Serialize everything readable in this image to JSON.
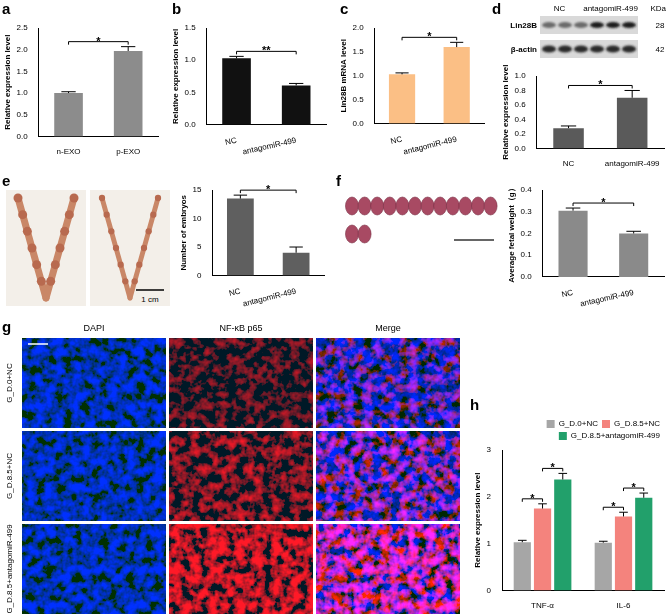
{
  "chart_data": [
    {
      "panel": "a",
      "type": "bar",
      "categories": [
        "n-EXO",
        "p-EXO"
      ],
      "values": [
        1.0,
        1.97
      ],
      "errors": [
        0.03,
        0.1
      ],
      "color": "#8c8c8c",
      "ylabel": "Relative expression level",
      "ylim": [
        0,
        2.5
      ],
      "yticks": [
        {
          "value": 0,
          "label": "0.0"
        },
        {
          "value": 0.5,
          "label": "0.5"
        },
        {
          "value": 1,
          "label": "1.0"
        },
        {
          "value": 1.5,
          "label": "1.5"
        },
        {
          "value": 2,
          "label": "2.0"
        },
        {
          "value": 2.5,
          "label": "2.5"
        }
      ],
      "grid": false,
      "significance": [
        {
          "text": "*",
          "between": [
            "n-EXO",
            "p-EXO"
          ]
        }
      ]
    },
    {
      "panel": "b",
      "type": "bar",
      "categories": [
        "NC",
        "antagomiR-499"
      ],
      "values": [
        1.03,
        0.61
      ],
      "errors": [
        0.03,
        0.03
      ],
      "color": "#111111",
      "ylabel": "Relative expression level",
      "ylim": [
        0,
        1.5
      ],
      "yticks": [
        {
          "value": 0,
          "label": "0.0"
        },
        {
          "value": 0.5,
          "label": "0.5"
        },
        {
          "value": 1,
          "label": "1.0"
        },
        {
          "value": 1.5,
          "label": "1.5"
        }
      ],
      "grid": false,
      "significance": [
        {
          "text": "**",
          "between": [
            "NC",
            "antagomiR-499"
          ]
        }
      ]
    },
    {
      "panel": "c",
      "type": "bar",
      "categories": [
        "NC",
        "antagomiR-499"
      ],
      "values": [
        1.03,
        1.6
      ],
      "errors": [
        0.03,
        0.1
      ],
      "color": "#fbbf85",
      "ylabel": "Lin28B mRNA level",
      "ylim": [
        0,
        2
      ],
      "yticks": [
        {
          "value": 0,
          "label": "0.0"
        },
        {
          "value": 0.5,
          "label": "0.5"
        },
        {
          "value": 1,
          "label": "1.0"
        },
        {
          "value": 1.5,
          "label": "1.5"
        },
        {
          "value": 2,
          "label": "2.0"
        }
      ],
      "grid": false,
      "significance": [
        {
          "text": "*",
          "between": [
            "NC",
            "antagomiR-499"
          ]
        }
      ]
    },
    {
      "type": "bar",
      "categories": [
        "NC",
        "antagomiR-499"
      ],
      "values": [
        0.28,
        0.7
      ],
      "errors": [
        0.03,
        0.1
      ],
      "color": "#5a5a5a",
      "ylabel": "Relative expression level",
      "ylim": [
        0,
        1
      ],
      "yticks": [
        {
          "value": 0,
          "label": "0.0"
        },
        {
          "value": 0.2,
          "label": "0.2"
        },
        {
          "value": 0.4,
          "label": "0.4"
        },
        {
          "value": 0.6,
          "label": "0.6"
        },
        {
          "value": 0.8,
          "label": "0.8"
        },
        {
          "value": 1,
          "label": "1.0"
        }
      ],
      "grid": false,
      "significance": [
        {
          "text": "*",
          "between": [
            "NC",
            "antagomiR-499"
          ]
        }
      ]
    },
    {
      "panel": "e",
      "type": "bar",
      "categories": [
        "NC",
        "antagomiR-499"
      ],
      "values": [
        13.5,
        4
      ],
      "errors": [
        0.6,
        1
      ],
      "color": "#5f5f5f",
      "ylabel": "Number of embryos",
      "ylim": [
        0,
        15
      ],
      "yticks": [
        0,
        5,
        10,
        15
      ],
      "grid": false,
      "significance": [
        {
          "text": "*",
          "between": [
            "NC",
            "antagomiR-499"
          ]
        }
      ]
    },
    {
      "panel": "f",
      "type": "bar",
      "categories": [
        "NC",
        "antagomiR-499"
      ],
      "values": [
        0.305,
        0.2
      ],
      "errors": [
        0.012,
        0.01
      ],
      "color": "#8a8a8a",
      "ylabel": "Average fetal weight（g）",
      "ylim": [
        0,
        0.4
      ],
      "yticks": [
        {
          "value": 0,
          "label": "0.0"
        },
        {
          "value": 0.1,
          "label": "0.1"
        },
        {
          "value": 0.2,
          "label": "0.2"
        },
        {
          "value": 0.3,
          "label": "0.3"
        },
        {
          "value": 0.4,
          "label": "0.4"
        }
      ],
      "grid": false,
      "significance": [
        {
          "text": "*",
          "between": [
            "NC",
            "antagomiR-499"
          ]
        }
      ]
    },
    {
      "panel": "h",
      "type": "bar",
      "categories": [
        "TNF-α",
        "IL-6"
      ],
      "series": [
        {
          "name": "G_D.0+NC",
          "color": "#a6a6a6",
          "values": [
            1.03,
            1.02
          ],
          "errors": [
            0.04,
            0.03
          ]
        },
        {
          "name": "G_D.8.5+NC",
          "color": "#f4837d",
          "values": [
            1.75,
            1.58
          ],
          "errors": [
            0.1,
            0.09
          ]
        },
        {
          "name": "G_D.8.5+antagomiR-499",
          "color": "#22a06b",
          "values": [
            2.37,
            1.98
          ],
          "errors": [
            0.13,
            0.1
          ]
        }
      ],
      "ylabel": "Relative expression level",
      "ylim": [
        0,
        3
      ],
      "yticks": [
        0,
        1,
        2,
        3
      ],
      "grid": false,
      "legend": "top-right",
      "significance": [
        {
          "text": "*",
          "category": "TNF-α",
          "between": [
            "G_D.0+NC",
            "G_D.8.5+NC"
          ]
        },
        {
          "text": "*",
          "category": "TNF-α",
          "between": [
            "G_D.8.5+NC",
            "G_D.8.5+antagomiR-499"
          ]
        },
        {
          "text": "*",
          "category": "IL-6",
          "between": [
            "G_D.0+NC",
            "G_D.8.5+NC"
          ]
        },
        {
          "text": "*",
          "category": "IL-6",
          "between": [
            "G_D.8.5+NC",
            "G_D.8.5+antagomiR-499"
          ]
        }
      ]
    }
  ],
  "blot": {
    "panel": "d",
    "lanes": [
      "NC",
      "antagomiR-499"
    ],
    "unit": "KDa",
    "rows": [
      {
        "name": "Lin28B",
        "size": "28"
      },
      {
        "name": "β-actin",
        "size": "42"
      }
    ]
  },
  "photos": {
    "scale": "1 cm"
  },
  "micrographs": {
    "panel": "g",
    "columns": [
      "DAPI",
      "NF-κB p65",
      "Merge"
    ],
    "rows": [
      "G_D.0+NC",
      "G_D.8.5+NC",
      "G_D.8.5+antagomiR-499"
    ]
  }
}
